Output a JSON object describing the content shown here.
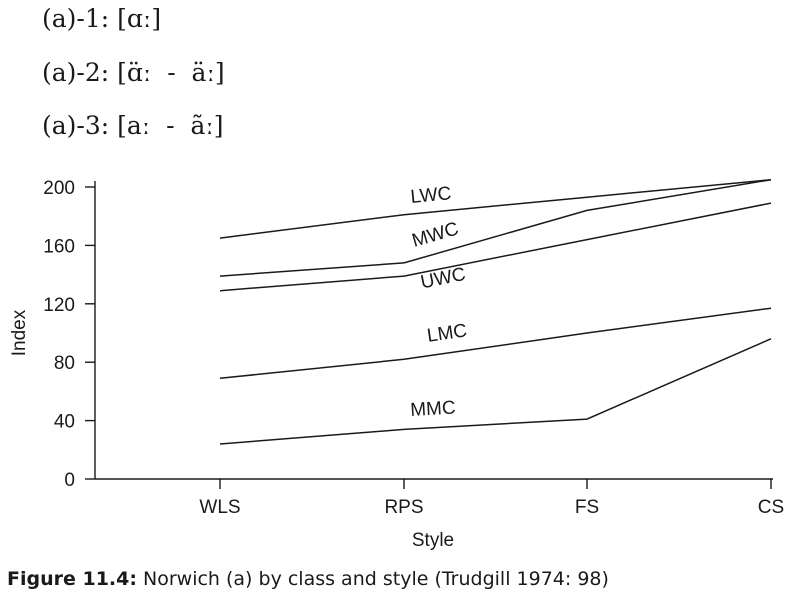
{
  "variants": [
    "(a)-1: [ɑː]",
    "(a)-2: [ɑ̈ː  -  äː]",
    "(a)-3: [aː  -  ãː]"
  ],
  "caption": {
    "label": "Figure 11.4:",
    "text": " Norwich (a) by class and style (Trudgill 1974: 98)"
  },
  "chart_data": {
    "type": "line",
    "xlabel": "Style",
    "ylabel": "Index",
    "categories": [
      "WLS",
      "RPS",
      "FS",
      "CS"
    ],
    "yticks": [
      0,
      40,
      80,
      120,
      160,
      200
    ],
    "ylim": [
      0,
      200
    ],
    "grid": false,
    "legend": "none",
    "line_color": "#1a1a1a",
    "series": [
      {
        "name": "LWC",
        "values": [
          165,
          181,
          193,
          205
        ]
      },
      {
        "name": "MWC",
        "values": [
          139,
          148,
          184,
          205
        ]
      },
      {
        "name": "UWC",
        "values": [
          129,
          139,
          164,
          189
        ]
      },
      {
        "name": "LMC",
        "values": [
          69,
          82,
          100,
          117
        ]
      },
      {
        "name": "MMC",
        "values": [
          24,
          34,
          41,
          96
        ]
      }
    ]
  }
}
